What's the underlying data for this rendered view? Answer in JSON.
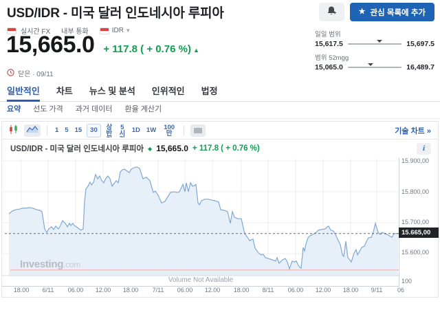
{
  "header": {
    "title": "USD/IDR - 미국 달러 인도네시아 루피아",
    "watchlist_label": "관심 목록에 추가",
    "meta": {
      "realtime": "실시간 FX",
      "type": "내부 통화",
      "currency": "IDR"
    }
  },
  "quote": {
    "price": "15,665.0",
    "change": "+ 117.8 ( + 0.76 %)",
    "status": "닫은 · 09/11",
    "daily_range": {
      "label": "일일 범위",
      "low": "15,617.5",
      "high": "15,697.5",
      "pos_pct": 59
    },
    "week52_range": {
      "label": "범위 52mgg",
      "low": "15,065.0",
      "high": "16,489.7",
      "pos_pct": 42
    }
  },
  "tabs": {
    "active_index": 0,
    "items": [
      "일반적인",
      "차트",
      "뉴스 및 분석",
      "인위적인",
      "법정"
    ]
  },
  "subtabs": {
    "active_index": 0,
    "items": [
      "요약",
      "선도 가격",
      "과거 데이터",
      "환율 계산기"
    ]
  },
  "toolbar": {
    "timeframes": [
      "1",
      "5",
      "15",
      "30",
      "상반기",
      "5시간",
      "1D",
      "1W",
      "100만"
    ],
    "selected_timeframe": "30",
    "tech_chart_link": "기술 차트 »"
  },
  "chart": {
    "title": "USD/IDR - 미국 달러 인도네시아 루피아",
    "price": "15,665.0",
    "change": "+ 117.8 ( + 0.76 %)",
    "price_tag": "15.665,00",
    "volume_tick": "100",
    "volume_note": "Volume Not Available",
    "watermark": "Investing",
    "watermark_suffix": ".com"
  },
  "icons": {
    "star": "★",
    "chevron_down": "▾",
    "up_arrow": "▲",
    "diamond": "◆",
    "info": "i"
  },
  "colors": {
    "up_green": "#0f9d4e",
    "accent_blue": "#2a5db8",
    "button_blue": "#1e63b4",
    "line_blue": "#7fa8d4",
    "fill_blue": "#e3edf7",
    "tag_black": "#222327",
    "prev_close_pink": "#f2b8b6",
    "grid": "#f2ecec"
  },
  "chart_data": {
    "type": "area",
    "title": "USD/IDR price",
    "y_ticks": [
      "15.900,00",
      "15.800,00",
      "15.700,00",
      "15.600,00"
    ],
    "y_tick_values": [
      15900,
      15800,
      15700,
      15600
    ],
    "x_ticks": [
      "18.00",
      "6/11",
      "06.00",
      "12.00",
      "18.00",
      "7/11",
      "06.00",
      "12.00",
      "18.00",
      "8/11",
      "06.00",
      "12.00",
      "18.00",
      "9/11",
      "06"
    ],
    "last_price": 15665,
    "prev_close": 15547.2,
    "ylim": [
      15520,
      15910
    ],
    "volume_axis_tick": 100,
    "series": [
      {
        "name": "USD/IDR",
        "points": [
          [
            10,
            15729
          ],
          [
            15,
            15738
          ],
          [
            20,
            15742
          ],
          [
            25,
            15744
          ],
          [
            30,
            15747
          ],
          [
            35,
            15747
          ],
          [
            40,
            15749
          ],
          [
            45,
            15747
          ],
          [
            50,
            15742
          ],
          [
            55,
            15740
          ],
          [
            58,
            15736
          ],
          [
            62,
            15680
          ],
          [
            65,
            15669
          ],
          [
            68,
            15680
          ],
          [
            72,
            15687
          ],
          [
            75,
            15678
          ],
          [
            78,
            15689
          ],
          [
            82,
            15680
          ],
          [
            85,
            15691
          ],
          [
            88,
            15707
          ],
          [
            92,
            15698
          ],
          [
            95,
            15687
          ],
          [
            98,
            15698
          ],
          [
            100,
            15691
          ],
          [
            103,
            15698
          ],
          [
            105,
            15691
          ],
          [
            108,
            15687
          ],
          [
            112,
            15680
          ],
          [
            115,
            15676
          ],
          [
            118,
            15680
          ],
          [
            120,
            15769
          ],
          [
            122,
            15809
          ],
          [
            125,
            15818
          ],
          [
            128,
            15831
          ],
          [
            130,
            15822
          ],
          [
            133,
            15831
          ],
          [
            136,
            15856
          ],
          [
            139,
            15842
          ],
          [
            142,
            15851
          ],
          [
            145,
            15836
          ],
          [
            148,
            15829
          ],
          [
            151,
            15844
          ],
          [
            154,
            15851
          ],
          [
            157,
            15842
          ],
          [
            160,
            15818
          ],
          [
            163,
            15827
          ],
          [
            166,
            15836
          ],
          [
            169,
            15829
          ],
          [
            172,
            15864
          ],
          [
            175,
            15871
          ],
          [
            178,
            15873
          ],
          [
            182,
            15867
          ],
          [
            185,
            15862
          ],
          [
            188,
            15873
          ],
          [
            192,
            15878
          ],
          [
            196,
            15880
          ],
          [
            200,
            15876
          ],
          [
            205,
            15842
          ],
          [
            210,
            15847
          ],
          [
            215,
            15836
          ],
          [
            220,
            15798
          ],
          [
            223,
            15802
          ],
          [
            227,
            15789
          ],
          [
            232,
            15764
          ],
          [
            237,
            15769
          ],
          [
            245,
            15798
          ],
          [
            250,
            15800
          ],
          [
            255,
            15798
          ],
          [
            258,
            15800
          ],
          [
            263,
            15824
          ],
          [
            266,
            15800
          ],
          [
            268,
            15829
          ],
          [
            271,
            15800
          ],
          [
            274,
            15829
          ],
          [
            277,
            15818
          ],
          [
            280,
            15820
          ],
          [
            282,
            15824
          ],
          [
            285,
            15764
          ],
          [
            287,
            15758
          ],
          [
            290,
            15771
          ],
          [
            295,
            15776
          ],
          [
            300,
            15776
          ],
          [
            305,
            15773
          ],
          [
            310,
            15771
          ],
          [
            315,
            15767
          ],
          [
            318,
            15742
          ],
          [
            323,
            15740
          ],
          [
            328,
            15736
          ],
          [
            332,
            15698
          ],
          [
            335,
            15736
          ],
          [
            338,
            15718
          ],
          [
            343,
            15713
          ],
          [
            348,
            15713
          ],
          [
            353,
            15664
          ],
          [
            357,
            15653
          ],
          [
            360,
            15642
          ],
          [
            365,
            15647
          ],
          [
            368,
            15618
          ],
          [
            373,
            15602
          ],
          [
            377,
            15596
          ],
          [
            380,
            15598
          ],
          [
            383,
            15587
          ],
          [
            388,
            15584
          ],
          [
            393,
            15580
          ],
          [
            398,
            15576
          ],
          [
            400,
            15587
          ],
          [
            403,
            15569
          ],
          [
            408,
            15580
          ],
          [
            412,
            15584
          ],
          [
            415,
            15573
          ],
          [
            418,
            15551
          ],
          [
            422,
            15576
          ],
          [
            425,
            15573
          ],
          [
            428,
            15576
          ],
          [
            432,
            15558
          ],
          [
            435,
            15553
          ],
          [
            438,
            15620
          ],
          [
            440,
            15609
          ],
          [
            442,
            15631
          ],
          [
            445,
            15651
          ],
          [
            448,
            15658
          ],
          [
            452,
            15662
          ],
          [
            457,
            15669
          ],
          [
            460,
            15676
          ],
          [
            465,
            15678
          ],
          [
            470,
            15680
          ],
          [
            473,
            15687
          ],
          [
            475,
            15689
          ],
          [
            478,
            15676
          ],
          [
            482,
            15673
          ],
          [
            485,
            15662
          ],
          [
            488,
            15647
          ],
          [
            492,
            15629
          ],
          [
            495,
            15596
          ],
          [
            497,
            15591
          ],
          [
            500,
            15640
          ],
          [
            503,
            15587
          ],
          [
            507,
            15576
          ],
          [
            508,
            15573
          ],
          [
            512,
            15602
          ],
          [
            515,
            15613
          ],
          [
            517,
            15596
          ],
          [
            520,
            15607
          ],
          [
            523,
            15620
          ],
          [
            527,
            15624
          ],
          [
            530,
            15640
          ],
          [
            533,
            15651
          ],
          [
            537,
            15653
          ],
          [
            540,
            15669
          ],
          [
            543,
            15698
          ],
          [
            547,
            15669
          ],
          [
            550,
            15662
          ],
          [
            553,
            15669
          ],
          [
            557,
            15664
          ],
          [
            560,
            15662
          ],
          [
            563,
            15658
          ],
          [
            567,
            15653
          ],
          [
            570,
            15665
          ],
          [
            576,
            15665
          ]
        ]
      }
    ]
  }
}
